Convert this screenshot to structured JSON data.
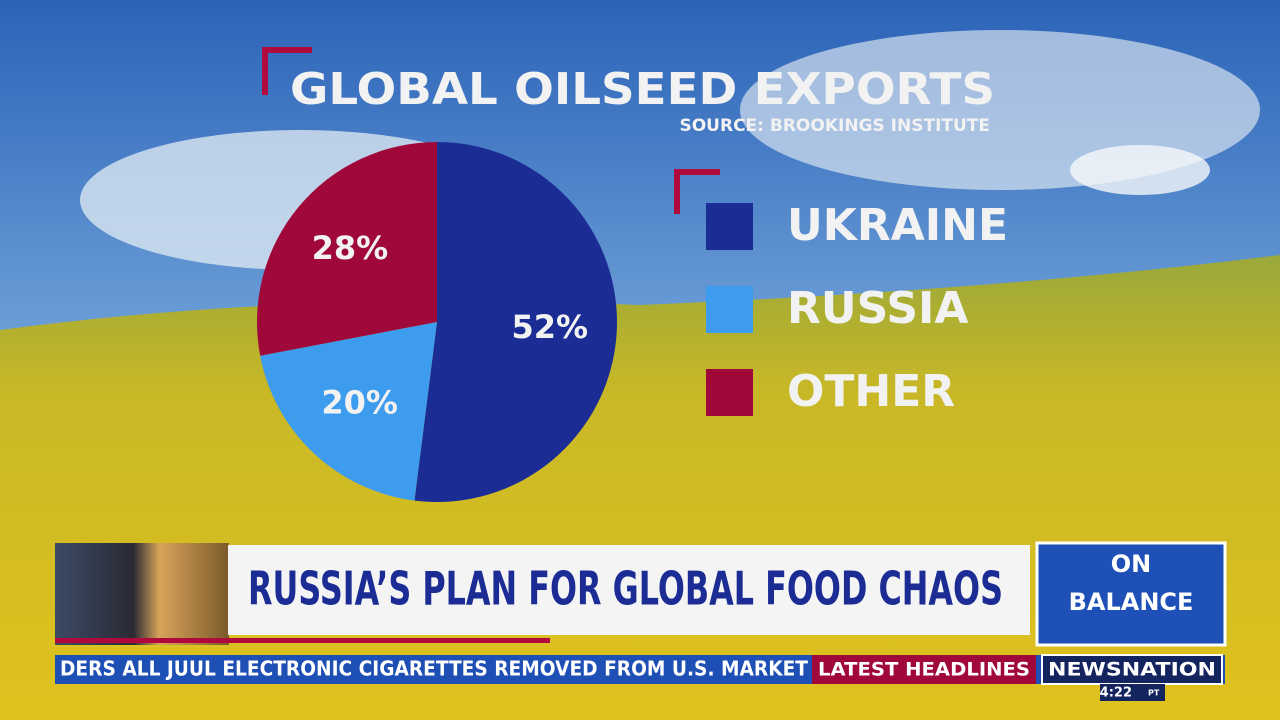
{
  "chart_data": {
    "type": "pie",
    "title": "GLOBAL OILSEED EXPORTS",
    "subtitle": "SOURCE: BROOKINGS INSTITUTE",
    "categories": [
      "UKRAINE",
      "RUSSIA",
      "OTHER"
    ],
    "values": [
      52,
      20,
      28
    ],
    "value_labels": [
      "52%",
      "20%",
      "28%"
    ],
    "colors": [
      "#1b2d95",
      "#3d9ced",
      "#a0083a"
    ],
    "legend": "right"
  },
  "broadcast": {
    "headline": "RUSSIA’S PLAN FOR GLOBAL FOOD CHAOS",
    "ticker": "DERS ALL JUUL ELECTRONIC CIGARETTES REMOVED FROM U.S. MARKET",
    "ticker_label": "LATEST HEADLINES",
    "network": "NEWSNATION",
    "time": "4:22",
    "timezone": "PT",
    "show_logo": [
      "ON",
      "BALANCE"
    ]
  }
}
